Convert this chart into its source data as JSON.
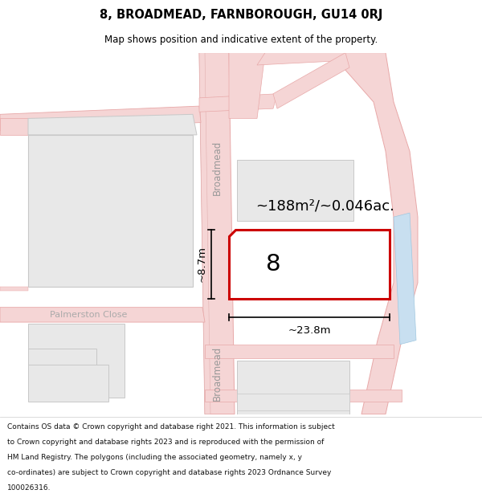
{
  "title": "8, BROADMEAD, FARNBOROUGH, GU14 0RJ",
  "subtitle": "Map shows position and indicative extent of the property.",
  "footer_lines": [
    "Contains OS data © Crown copyright and database right 2021. This information is subject",
    "to Crown copyright and database rights 2023 and is reproduced with the permission of",
    "HM Land Registry. The polygons (including the associated geometry, namely x, y",
    "co-ordinates) are subject to Crown copyright and database rights 2023 Ordnance Survey",
    "100026316."
  ],
  "map_bg": "#f7f7f7",
  "road_fill": "#f5d5d5",
  "road_edge": "#e8a8a8",
  "building_fill": "#e8e8e8",
  "building_edge": "#c8c8c8",
  "highlight_fill": "#ffffff",
  "highlight_edge": "#cc0000",
  "highlight_lw": 2.2,
  "water_fill": "#c8dff0",
  "water_edge": "#a0c8e0",
  "area_text": "~188m²/~0.046ac.",
  "width_text": "~23.8m",
  "height_text": "~8.7m",
  "number_text": "8",
  "street_name": "Broadmead",
  "palmerston_close": "Palmerston Close",
  "header_bg": "#ffffff",
  "footer_bg": "#f2f2f2",
  "title_fontsize": 10.5,
  "subtitle_fontsize": 8.5
}
